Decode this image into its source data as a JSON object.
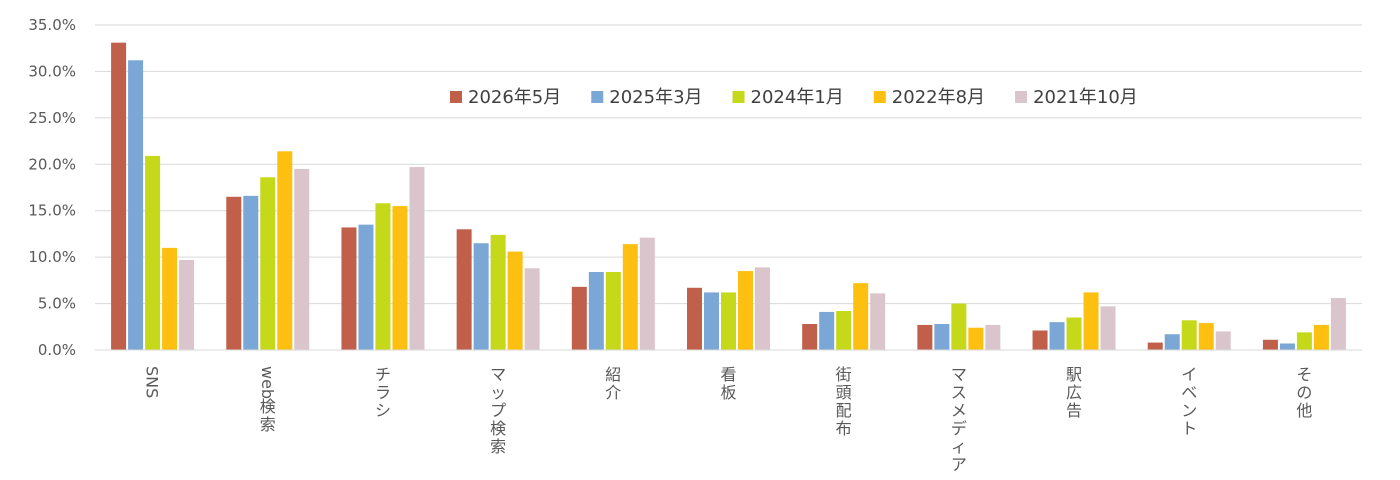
{
  "chart_data": {
    "type": "bar",
    "categories": [
      "SNS",
      "web検索",
      "チラシ",
      "マップ検索",
      "紹介",
      "看板",
      "街頭配布",
      "マスメディア",
      "駅広告",
      "イベント",
      "その他"
    ],
    "series": [
      {
        "name": "2026年5月",
        "color": "#c0604a",
        "values": [
          33.1,
          16.5,
          13.2,
          13.0,
          6.8,
          6.7,
          2.8,
          2.7,
          2.1,
          0.8,
          1.1
        ]
      },
      {
        "name": "2025年3月",
        "color": "#7ba7d6",
        "values": [
          31.2,
          16.6,
          13.5,
          11.5,
          8.4,
          6.2,
          4.1,
          2.8,
          3.0,
          1.7,
          0.7
        ]
      },
      {
        "name": "2024年1月",
        "color": "#c6d81a",
        "values": [
          20.9,
          18.6,
          15.8,
          12.4,
          8.4,
          6.2,
          4.2,
          5.0,
          3.5,
          3.2,
          1.9
        ]
      },
      {
        "name": "2022年8月",
        "color": "#fdc010",
        "values": [
          11.0,
          21.4,
          15.5,
          10.6,
          11.4,
          8.5,
          7.2,
          2.4,
          6.2,
          2.9,
          2.7
        ]
      },
      {
        "name": "2021年10月",
        "color": "#dac5cd",
        "values": [
          9.7,
          19.5,
          19.7,
          8.8,
          12.1,
          8.9,
          6.1,
          2.7,
          4.7,
          2.0,
          5.6
        ]
      }
    ],
    "y_ticks": [
      "0.0%",
      "5.0%",
      "10.0%",
      "15.0%",
      "20.0%",
      "25.0%",
      "30.0%",
      "35.0%"
    ],
    "ylim": [
      0,
      35
    ],
    "ytick_step": 5,
    "grid": true,
    "legend_position": "top-right",
    "title": "",
    "xlabel": "",
    "ylabel": ""
  }
}
